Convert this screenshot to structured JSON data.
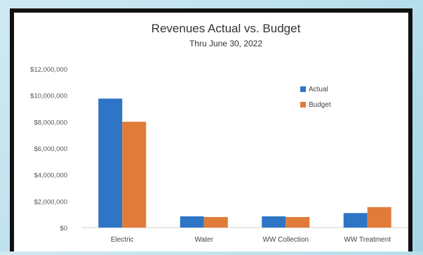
{
  "chart_data": {
    "type": "bar",
    "title": "Revenues Actual vs. Budget",
    "subtitle": "Thru June 30, 2022",
    "categories": [
      "Electric",
      "Water",
      "WW Collection",
      "WW Treatment"
    ],
    "series": [
      {
        "name": "Actual",
        "values": [
          9750000,
          850000,
          850000,
          1100000
        ],
        "color": "#2e75c6"
      },
      {
        "name": "Budget",
        "values": [
          8000000,
          800000,
          800000,
          1550000
        ],
        "color": "#e07b39"
      }
    ],
    "yticks": [
      "$0",
      "$2,000,000",
      "$4,000,000",
      "$6,000,000",
      "$8,000,000",
      "$10,000,000",
      "$12,000,000"
    ],
    "ylim": [
      0,
      12000000
    ],
    "grid": false,
    "legend_position": "top-right"
  }
}
